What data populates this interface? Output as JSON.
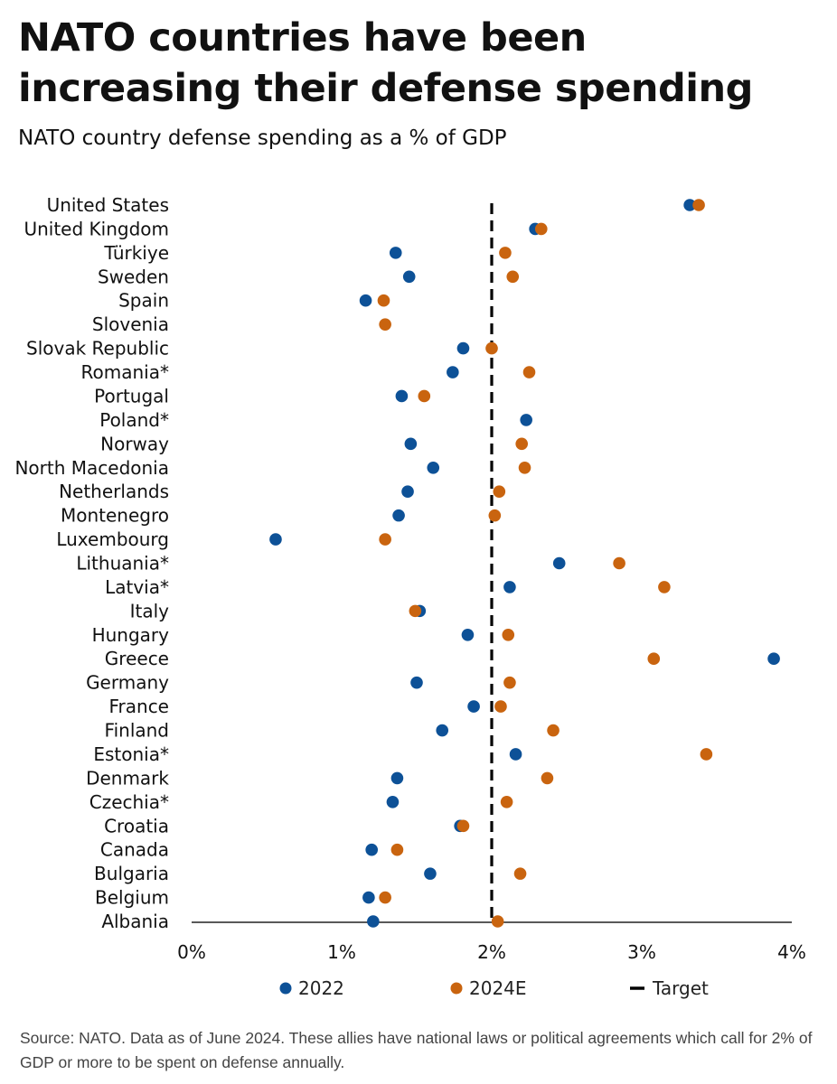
{
  "title": "NATO countries have been increasing their defense spending",
  "subtitle": "NATO country defense spending as a % of GDP",
  "source": "Source: NATO. Data as of June 2024. These allies have national laws or political agreements which call for 2% of GDP or more to be spent on defense annually.",
  "colors": {
    "s2022": "#0d5197",
    "s2024": "#c9640f",
    "target": "#000000",
    "axis": "#222222"
  },
  "chart_data": {
    "type": "scatter",
    "title": "NATO country defense spending as a % of GDP",
    "xlabel": "",
    "ylabel": "",
    "xlim": [
      0,
      4
    ],
    "x_ticks": [
      "0%",
      "1%",
      "2%",
      "3%",
      "4%"
    ],
    "grid": false,
    "legend_position": "bottom",
    "target": {
      "name": "Target",
      "value": 2.0
    },
    "categories": [
      "United States",
      "United Kingdom",
      "Türkiye",
      "Sweden",
      "Spain",
      "Slovenia",
      "Slovak Republic",
      "Romania*",
      "Portugal",
      "Poland*",
      "Norway",
      "North Macedonia",
      "Netherlands",
      "Montenegro",
      "Luxembourg",
      "Lithuania*",
      "Latvia*",
      "Italy",
      "Hungary",
      "Greece",
      "Germany",
      "France",
      "Finland",
      "Estonia*",
      "Denmark",
      "Czechia*",
      "Croatia",
      "Canada",
      "Bulgaria",
      "Belgium",
      "Albania"
    ],
    "series": [
      {
        "name": "2022",
        "values": [
          3.32,
          2.29,
          1.36,
          1.45,
          1.16,
          null,
          1.81,
          1.74,
          1.4,
          2.23,
          1.46,
          1.61,
          1.44,
          1.38,
          0.56,
          2.45,
          2.12,
          1.52,
          1.84,
          3.88,
          1.5,
          1.88,
          1.67,
          2.16,
          1.37,
          1.34,
          1.79,
          1.2,
          1.59,
          1.18,
          1.21
        ]
      },
      {
        "name": "2024E",
        "values": [
          3.38,
          2.33,
          2.09,
          2.14,
          1.28,
          1.29,
          2.0,
          2.25,
          1.55,
          null,
          2.2,
          2.22,
          2.05,
          2.02,
          1.29,
          2.85,
          3.15,
          1.49,
          2.11,
          3.08,
          2.12,
          2.06,
          2.41,
          3.43,
          2.37,
          2.1,
          1.81,
          1.37,
          2.19,
          1.29,
          2.04
        ]
      }
    ]
  }
}
